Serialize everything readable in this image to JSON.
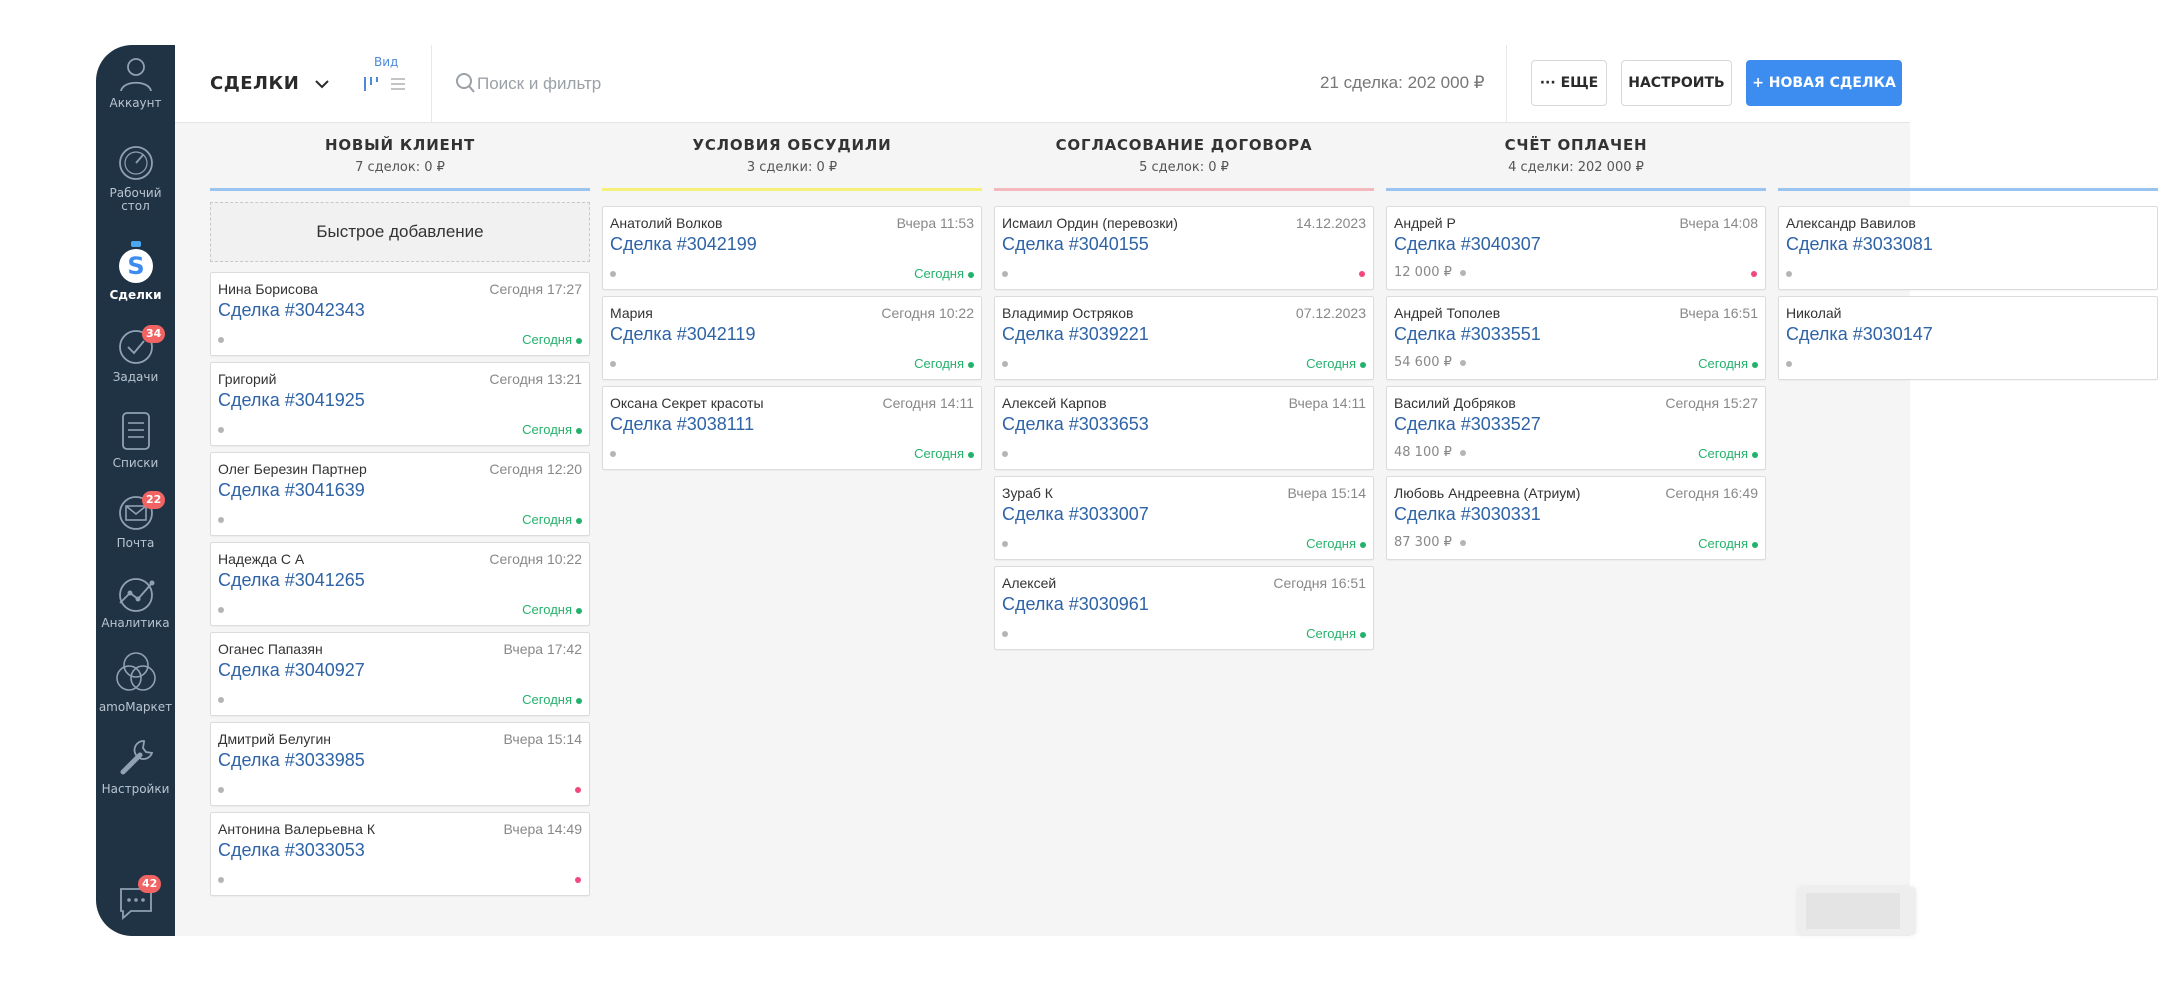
{
  "sidebar": {
    "account_label": "Аккаунт",
    "items": [
      {
        "label": "Рабочий стол",
        "icon": "dashboard-icon"
      },
      {
        "label": "Сделки",
        "icon": "deals-icon"
      },
      {
        "label": "Задачи",
        "icon": "tasks-icon",
        "badge": "34"
      },
      {
        "label": "Списки",
        "icon": "lists-icon"
      },
      {
        "label": "Почта",
        "icon": "mail-icon",
        "badge": "22"
      },
      {
        "label": "Аналитика",
        "icon": "analytics-icon"
      },
      {
        "label": "amoМаркет",
        "icon": "market-icon"
      },
      {
        "label": "Настройки",
        "icon": "settings-icon"
      }
    ],
    "chat_badge": "42"
  },
  "header": {
    "title": "СДЕЛКИ",
    "view_label": "Вид",
    "search_placeholder": "Поиск и фильтр",
    "summary": "21 сделка: 202 000 ₽",
    "more_label": "··· ЕЩЕ",
    "setup_label": "НАСТРОИТЬ",
    "new_label": "+ НОВАЯ СДЕЛКА"
  },
  "colors": {
    "sidebar_bg": "#1f3345",
    "accent": "#3d8cf0",
    "link": "#2e63a6",
    "task_green": "#24b26b",
    "overdue_red": "#f2497d"
  },
  "columns": [
    {
      "title": "НОВЫЙ КЛИЕНТ",
      "subtitle": "7 сделок: 0 ₽",
      "color": "#99c3f0",
      "quick_add": "Быстрое добавление",
      "cards": [
        {
          "name": "Нина Борисова",
          "date": "Сегодня 17:27",
          "deal": "Сделка #3042343",
          "task": "Сегодня"
        },
        {
          "name": "Григорий",
          "date": "Сегодня 13:21",
          "deal": "Сделка #3041925",
          "task": "Сегодня"
        },
        {
          "name": "Олег Березин Партнер",
          "date": "Сегодня 12:20",
          "deal": "Сделка #3041639",
          "task": "Сегодня"
        },
        {
          "name": "Надежда С А",
          "date": "Сегодня 10:22",
          "deal": "Сделка #3041265",
          "task": "Сегодня"
        },
        {
          "name": "Оганес Папазян",
          "date": "Вчера 17:42",
          "deal": "Сделка #3040927",
          "task": "Сегодня"
        },
        {
          "name": "Дмитрий Белугин",
          "date": "Вчера 15:14",
          "deal": "Сделка #3033985",
          "overdue": true
        },
        {
          "name": "Антонина Валерьевна К",
          "date": "Вчера 14:49",
          "deal": "Сделка #3033053",
          "overdue": true
        }
      ]
    },
    {
      "title": "УСЛОВИЯ ОБСУДИЛИ",
      "subtitle": "3 сделки: 0 ₽",
      "color": "#f5f07a",
      "cards": [
        {
          "name": "Анатолий Волков",
          "date": "Вчера 11:53",
          "deal": "Сделка #3042199",
          "task": "Сегодня"
        },
        {
          "name": "Мария",
          "date": "Сегодня 10:22",
          "deal": "Сделка #3042119",
          "task": "Сегодня"
        },
        {
          "name": "Оксана Секрет красоты",
          "date": "Сегодня 14:11",
          "deal": "Сделка #3038111",
          "task": "Сегодня"
        }
      ]
    },
    {
      "title": "СОГЛАСОВАНИЕ ДОГОВОРА",
      "subtitle": "5 сделок: 0 ₽",
      "color": "#f5b8bf",
      "cards": [
        {
          "name": "Исмаил Ордин (перевозки)",
          "date": "14.12.2023",
          "deal": "Сделка #3040155",
          "overdue": true
        },
        {
          "name": "Владимир Остряков",
          "date": "07.12.2023",
          "deal": "Сделка #3039221",
          "task": "Сегодня"
        },
        {
          "name": "Алексей Карпов",
          "date": "Вчера 14:11",
          "deal": "Сделка #3033653"
        },
        {
          "name": "Зураб К",
          "date": "Вчера 15:14",
          "deal": "Сделка #3033007",
          "task": "Сегодня"
        },
        {
          "name": "Алексей",
          "date": "Сегодня 16:51",
          "deal": "Сделка #3030961",
          "task": "Сегодня"
        }
      ]
    },
    {
      "title": "СЧЁТ ОПЛАЧЕН",
      "subtitle": "4 сделки: 202 000 ₽",
      "color": "#99c3f0",
      "cards": [
        {
          "name": "Андрей Р",
          "date": "Вчера 14:08",
          "deal": "Сделка #3040307",
          "amount": "12 000 ₽",
          "overdue": true
        },
        {
          "name": "Андрей Тополев",
          "date": "Вчера 16:51",
          "deal": "Сделка #3033551",
          "amount": "54 600 ₽",
          "task": "Сегодня"
        },
        {
          "name": "Василий Добряков",
          "date": "Сегодня 15:27",
          "deal": "Сделка #3033527",
          "amount": "48 100 ₽",
          "task": "Сегодня"
        },
        {
          "name": "Любовь Андреевна (Атриум)",
          "date": "Сегодня 16:49",
          "deal": "Сделка #3030331",
          "amount": "87 300 ₽",
          "task": "Сегодня"
        }
      ]
    },
    {
      "title": "",
      "subtitle": "",
      "color": "#99c3f0",
      "cards": [
        {
          "name": "Александр Вавилов",
          "date": "",
          "deal": "Сделка #3033081"
        },
        {
          "name": "Николай",
          "date": "",
          "deal": "Сделка #3030147"
        }
      ]
    }
  ]
}
